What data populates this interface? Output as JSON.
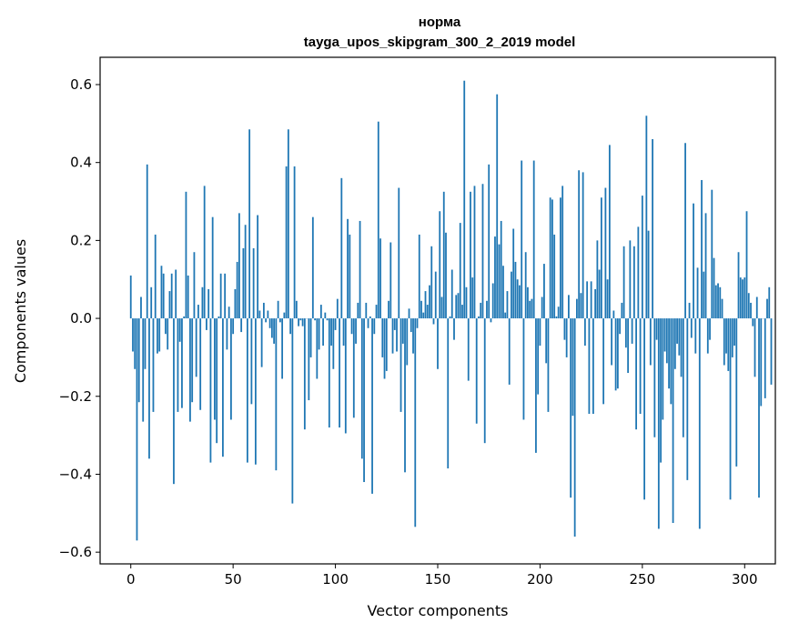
{
  "chart_data": {
    "type": "bar",
    "title": "норма",
    "subtitle": "tayga_upos_skipgram_300_2_2019 model",
    "xlabel": "Vector components",
    "ylabel": "Components values",
    "xlim": [
      -15,
      315
    ],
    "ylim": [
      -0.63,
      0.67
    ],
    "xticks": [
      0,
      50,
      100,
      150,
      200,
      250,
      300
    ],
    "xtick_labels": [
      "0",
      "50",
      "100",
      "150",
      "200",
      "250",
      "300"
    ],
    "yticks": [
      -0.6,
      -0.4,
      -0.2,
      0.0,
      0.2,
      0.4,
      0.6
    ],
    "ytick_labels": [
      "−0.6",
      "−0.4",
      "−0.2",
      "0.0",
      "0.2",
      "0.4",
      "0.6"
    ],
    "bar_color": "#1f77b4",
    "grid": false,
    "legend": "none",
    "series": [
      {
        "name": "норма",
        "values": [
          0.11,
          -0.085,
          -0.13,
          -0.57,
          -0.215,
          0.055,
          -0.265,
          -0.13,
          0.395,
          -0.36,
          0.08,
          -0.24,
          0.215,
          -0.09,
          -0.085,
          0.135,
          0.115,
          -0.04,
          -0.08,
          0.07,
          0.115,
          -0.425,
          0.125,
          -0.24,
          -0.06,
          -0.23,
          0.005,
          0.325,
          0.11,
          -0.265,
          -0.215,
          0.17,
          -0.15,
          0.035,
          -0.235,
          0.08,
          0.34,
          -0.03,
          0.075,
          -0.37,
          0.26,
          -0.26,
          -0.32,
          0.005,
          0.115,
          -0.355,
          0.115,
          -0.08,
          0.03,
          -0.26,
          -0.04,
          0.075,
          0.145,
          0.27,
          -0.035,
          0.18,
          0.24,
          -0.37,
          0.485,
          -0.22,
          0.18,
          -0.375,
          0.265,
          0.02,
          -0.125,
          0.04,
          -0.01,
          0.02,
          -0.025,
          -0.05,
          -0.065,
          -0.39,
          0.045,
          -0.01,
          -0.155,
          0.015,
          0.39,
          0.485,
          -0.04,
          -0.475,
          0.39,
          0.045,
          -0.02,
          -0.005,
          -0.02,
          -0.285,
          0.0,
          -0.21,
          -0.1,
          0.26,
          -0.005,
          -0.155,
          -0.08,
          0.035,
          -0.07,
          0.015,
          -0.005,
          -0.28,
          -0.07,
          -0.13,
          -0.03,
          0.05,
          -0.28,
          0.36,
          -0.07,
          -0.295,
          0.255,
          0.215,
          -0.04,
          -0.255,
          -0.065,
          0.04,
          0.25,
          -0.36,
          -0.42,
          0.04,
          -0.025,
          0.005,
          -0.45,
          -0.04,
          0.035,
          0.505,
          0.205,
          -0.1,
          -0.155,
          -0.135,
          0.045,
          0.195,
          -0.09,
          -0.03,
          -0.085,
          0.335,
          -0.24,
          -0.065,
          -0.395,
          -0.12,
          0.025,
          -0.035,
          -0.09,
          -0.535,
          -0.025,
          0.215,
          0.045,
          0.015,
          0.07,
          0.035,
          0.085,
          0.185,
          -0.015,
          0.12,
          -0.13,
          0.275,
          0.055,
          0.325,
          0.22,
          -0.385,
          0.005,
          0.125,
          -0.055,
          0.06,
          0.065,
          0.245,
          0.035,
          0.61,
          0.08,
          -0.16,
          0.325,
          0.105,
          0.34,
          -0.27,
          0.005,
          0.04,
          0.345,
          -0.32,
          0.045,
          0.395,
          -0.01,
          0.09,
          0.21,
          0.575,
          0.19,
          0.25,
          0.135,
          0.015,
          0.07,
          -0.17,
          0.12,
          0.23,
          0.145,
          0.1,
          0.085,
          0.405,
          -0.26,
          0.17,
          0.08,
          0.045,
          0.05,
          0.405,
          -0.345,
          -0.195,
          -0.07,
          0.055,
          0.14,
          -0.115,
          -0.24,
          0.31,
          0.305,
          0.215,
          0.005,
          0.03,
          0.31,
          0.34,
          -0.055,
          -0.1,
          0.06,
          -0.46,
          -0.25,
          -0.56,
          0.05,
          0.38,
          0.065,
          0.375,
          -0.07,
          0.095,
          -0.245,
          0.095,
          -0.245,
          0.075,
          0.2,
          0.125,
          0.31,
          -0.22,
          0.335,
          0.1,
          0.445,
          -0.12,
          0.02,
          -0.185,
          -0.18,
          -0.04,
          0.04,
          0.185,
          -0.075,
          -0.14,
          0.2,
          -0.065,
          0.185,
          -0.285,
          0.235,
          -0.245,
          0.315,
          -0.465,
          0.52,
          0.225,
          -0.12,
          0.46,
          -0.305,
          -0.055,
          -0.54,
          -0.37,
          -0.26,
          -0.085,
          -0.115,
          -0.18,
          -0.22,
          -0.525,
          -0.13,
          -0.065,
          -0.095,
          -0.15,
          -0.305,
          0.45,
          -0.415,
          0.04,
          -0.05,
          0.295,
          -0.09,
          0.13,
          -0.54,
          0.355,
          0.12,
          0.27,
          -0.09,
          -0.055,
          0.33,
          0.155,
          0.085,
          0.09,
          0.08,
          0.05,
          -0.12,
          -0.09,
          -0.135,
          -0.465,
          -0.1,
          -0.07,
          -0.38,
          0.17,
          0.105,
          0.1,
          0.105,
          0.275,
          0.065,
          0.04,
          -0.02,
          -0.15,
          0.055,
          -0.46,
          -0.225,
          0.0,
          -0.205,
          0.05,
          0.08,
          -0.17
        ]
      }
    ]
  }
}
